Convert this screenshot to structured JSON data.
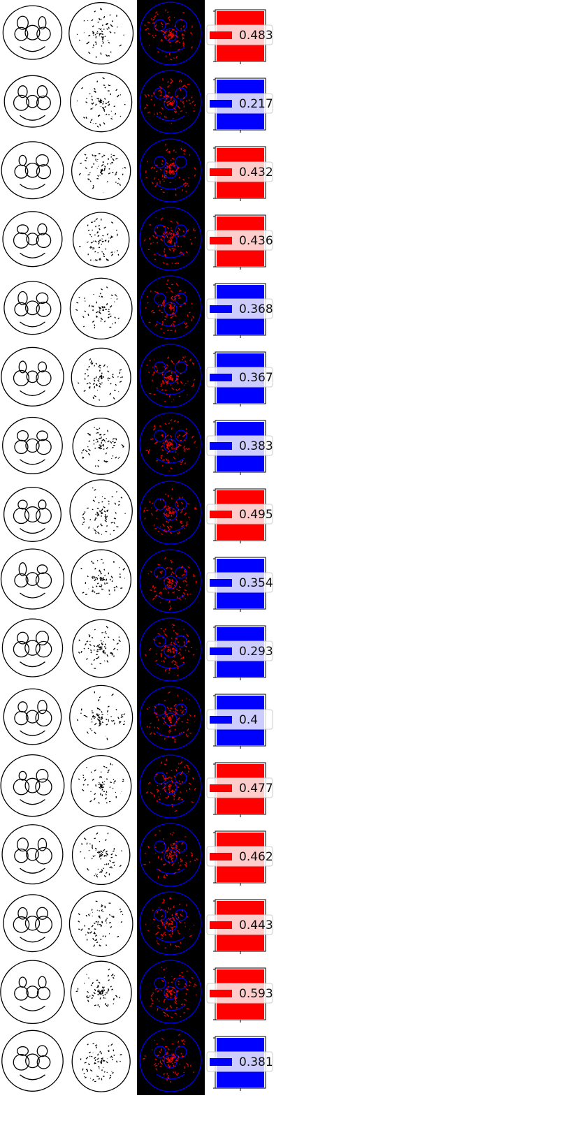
{
  "colors": {
    "red": "#ff0000",
    "blue": "#0000ff",
    "axis": "#000000",
    "edge_background": "#000000"
  },
  "panel_titles": [],
  "chart_data": {
    "type": "bar",
    "description_of_layout": "",
    "ylim": [
      0,
      1
    ],
    "rows": [
      {
        "value": "0.483",
        "score": 0.483,
        "color": "red"
      },
      {
        "value": "0.217",
        "score": 0.217,
        "color": "blue"
      },
      {
        "value": "0.432",
        "score": 0.432,
        "color": "red"
      },
      {
        "value": "0.436",
        "score": 0.436,
        "color": "red"
      },
      {
        "value": "0.368",
        "score": 0.368,
        "color": "blue"
      },
      {
        "value": "0.367",
        "score": 0.367,
        "color": "blue"
      },
      {
        "value": "0.383",
        "score": 0.383,
        "color": "blue"
      },
      {
        "value": "0.495",
        "score": 0.495,
        "color": "red"
      },
      {
        "value": "0.354",
        "score": 0.354,
        "color": "blue"
      },
      {
        "value": "0.293",
        "score": 0.293,
        "color": "blue"
      },
      {
        "value": "0.4",
        "score": 0.4,
        "color": "blue"
      },
      {
        "value": "0.477",
        "score": 0.477,
        "color": "red"
      },
      {
        "value": "0.462",
        "score": 0.462,
        "color": "red"
      },
      {
        "value": "0.443",
        "score": 0.443,
        "color": "red"
      },
      {
        "value": "0.593",
        "score": 0.593,
        "color": "red"
      },
      {
        "value": "0.381",
        "score": 0.381,
        "color": "blue"
      }
    ]
  }
}
